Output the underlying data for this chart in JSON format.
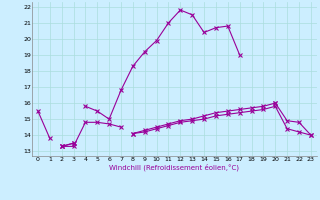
{
  "x": [
    0,
    1,
    2,
    3,
    4,
    5,
    6,
    7,
    8,
    9,
    10,
    11,
    12,
    13,
    14,
    15,
    16,
    17,
    18,
    19,
    20,
    21,
    22,
    23
  ],
  "line1": [
    15.5,
    13.8,
    null,
    null,
    15.8,
    15.5,
    15.0,
    16.8,
    18.3,
    19.2,
    19.9,
    21.0,
    21.8,
    21.5,
    20.4,
    20.7,
    20.8,
    19.0,
    null,
    null,
    16.0,
    null,
    null,
    null
  ],
  "line2": [
    null,
    null,
    13.3,
    13.3,
    14.8,
    14.8,
    14.7,
    14.5,
    null,
    null,
    null,
    null,
    null,
    null,
    null,
    null,
    null,
    null,
    null,
    null,
    null,
    null,
    null,
    null
  ],
  "line3": [
    null,
    null,
    13.3,
    13.5,
    null,
    null,
    null,
    null,
    14.1,
    14.3,
    14.5,
    14.7,
    14.9,
    15.0,
    15.2,
    15.4,
    15.5,
    15.6,
    15.7,
    15.8,
    16.0,
    14.9,
    14.8,
    14.0
  ],
  "line4": [
    null,
    null,
    13.3,
    13.5,
    null,
    null,
    null,
    null,
    14.1,
    14.2,
    14.4,
    14.6,
    14.8,
    14.9,
    15.0,
    15.2,
    15.3,
    15.4,
    15.5,
    15.6,
    15.8,
    14.4,
    14.2,
    14.0
  ],
  "color": "#990099",
  "bg_color": "#cceeff",
  "grid_color": "#aadddd",
  "ylabel_values": [
    13,
    14,
    15,
    16,
    17,
    18,
    19,
    20,
    21,
    22
  ],
  "xlabel_values": [
    0,
    1,
    2,
    3,
    4,
    5,
    6,
    7,
    8,
    9,
    10,
    11,
    12,
    13,
    14,
    15,
    16,
    17,
    18,
    19,
    20,
    21,
    22,
    23
  ],
  "xlabel": "Windchill (Refroidissement éolien,°C)",
  "ylim": [
    12.7,
    22.3
  ],
  "xlim": [
    -0.5,
    23.5
  ]
}
